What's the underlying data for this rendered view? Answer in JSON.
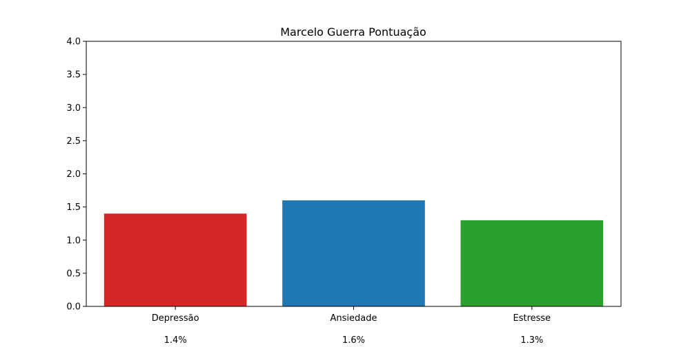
{
  "chart_data": {
    "type": "bar",
    "title": "Marcelo Guerra  Pontuação",
    "xlabel": "",
    "ylabel": "",
    "categories": [
      "Depressão",
      "Ansiedade",
      "Estresse"
    ],
    "values": [
      1.4,
      1.6,
      1.3
    ],
    "value_labels": [
      "1.4%",
      "1.6%",
      "1.3%"
    ],
    "colors": [
      "#d62728",
      "#1f77b4",
      "#2ca02c"
    ],
    "ylim": [
      0,
      4.0
    ],
    "yticks": [
      0.0,
      0.5,
      1.0,
      1.5,
      2.0,
      2.5,
      3.0,
      3.5,
      4.0
    ],
    "ytick_labels": [
      "0.0",
      "0.5",
      "1.0",
      "1.5",
      "2.0",
      "2.5",
      "3.0",
      "3.5",
      "4.0"
    ],
    "grid": false,
    "legend": "none"
  }
}
